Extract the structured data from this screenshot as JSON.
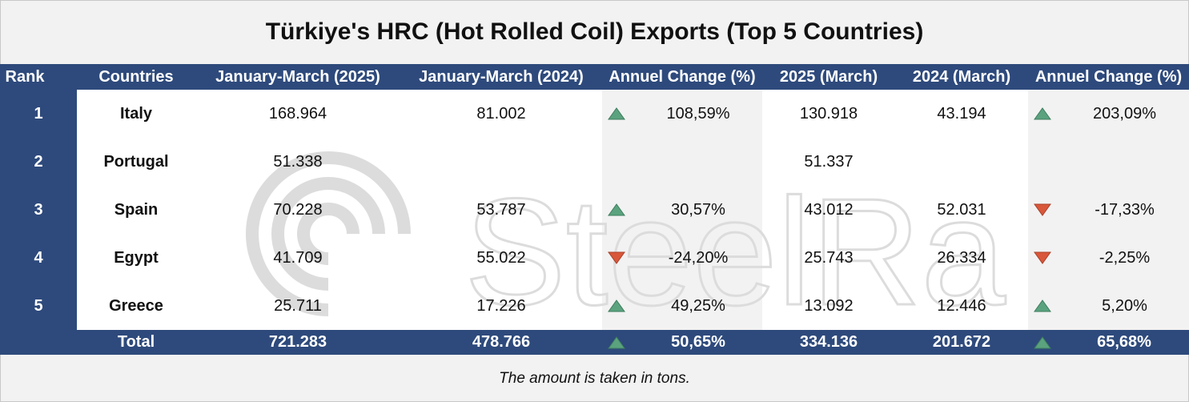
{
  "title": "Türkiye's HRC (Hot Rolled Coil) Exports (Top 5 Countries)",
  "headers": [
    "Rank",
    "Countries",
    "January-March (2025)",
    "January-March (2024)",
    "Annuel Change (%)",
    "2025 (March)",
    "2024 (March)",
    "Annuel Change (%)"
  ],
  "rows": [
    {
      "rank": "1",
      "country": "Italy",
      "jm2025": "168.964",
      "jm2024": "81.002",
      "change1": "108,59%",
      "dir1": "up",
      "m2025": "130.918",
      "m2024": "43.194",
      "change2": "203,09%",
      "dir2": "up"
    },
    {
      "rank": "2",
      "country": "Portugal",
      "jm2025": "51.338",
      "jm2024": "",
      "change1": "",
      "dir1": "",
      "m2025": "51.337",
      "m2024": "",
      "change2": "",
      "dir2": ""
    },
    {
      "rank": "3",
      "country": "Spain",
      "jm2025": "70.228",
      "jm2024": "53.787",
      "change1": "30,57%",
      "dir1": "up",
      "m2025": "43.012",
      "m2024": "52.031",
      "change2": "-17,33%",
      "dir2": "down"
    },
    {
      "rank": "4",
      "country": "Egypt",
      "jm2025": "41.709",
      "jm2024": "55.022",
      "change1": "-24,20%",
      "dir1": "down",
      "m2025": "25.743",
      "m2024": "26.334",
      "change2": "-2,25%",
      "dir2": "down"
    },
    {
      "rank": "5",
      "country": "Greece",
      "jm2025": "25.711",
      "jm2024": "17.226",
      "change1": "49,25%",
      "dir1": "up",
      "m2025": "13.092",
      "m2024": "12.446",
      "change2": "5,20%",
      "dir2": "up"
    }
  ],
  "total": {
    "label": "Total",
    "jm2025": "721.283",
    "jm2024": "478.766",
    "change1": "50,65%",
    "dir1": "up",
    "m2025": "334.136",
    "m2024": "201.672",
    "change2": "65,68%",
    "dir2": "up"
  },
  "footer": "The amount is taken in tons.",
  "watermark": "SteelRadar",
  "colors": {
    "header_bg": "#2e4a7c",
    "up_arrow": "#5aa37e",
    "down_arrow": "#d9573a",
    "shade": "#f2f2f2"
  }
}
